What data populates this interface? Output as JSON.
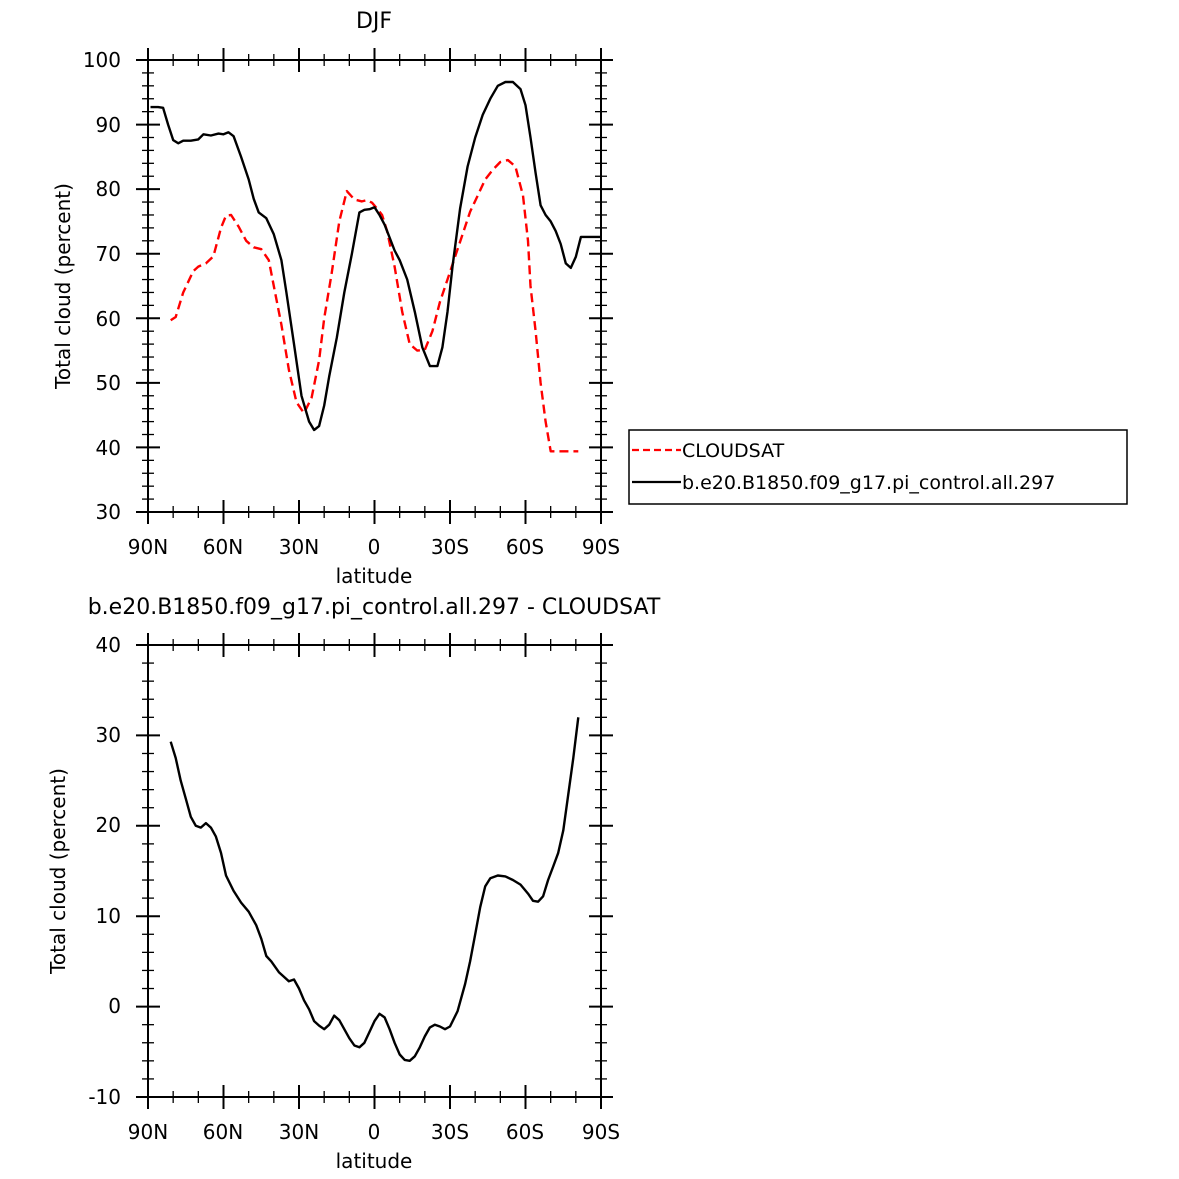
{
  "chart_data": [
    {
      "type": "line",
      "title": "DJF",
      "xlabel": "latitude",
      "ylabel": "Total cloud (percent)",
      "xlim": [
        90,
        -90
      ],
      "ylim": [
        30,
        100
      ],
      "yticks": [
        "30",
        "40",
        "50",
        "60",
        "70",
        "80",
        "90",
        "100"
      ],
      "xtick_values": [
        90,
        60,
        30,
        0,
        -30,
        -60,
        -90
      ],
      "xticks": [
        "90N",
        "60N",
        "30N",
        "0",
        "30S",
        "60S",
        "90S"
      ],
      "legend": "right",
      "series": [
        {
          "name": "CLOUDSAT",
          "color": "#ff0000",
          "dash": "dashed",
          "x": [
            81,
            79,
            76,
            72,
            70,
            67,
            64,
            61,
            59,
            57,
            54,
            51,
            48,
            45,
            42,
            40,
            37,
            34,
            31,
            28,
            25,
            22,
            20,
            17,
            14,
            11,
            8,
            5,
            3,
            1,
            -1,
            -3,
            -5,
            -8,
            -11,
            -14,
            -17,
            -20,
            -23,
            -26,
            -29,
            -32,
            -35,
            -38,
            -41,
            -44,
            -47,
            -50,
            -53,
            -56,
            -59,
            -61,
            -62,
            -64,
            -66,
            -68,
            -70,
            -72,
            -74,
            -76,
            -78,
            -80,
            -81
          ],
          "y": [
            59.7,
            60.2,
            64,
            67.3,
            68,
            68.5,
            69.6,
            74,
            75.9,
            76,
            74.2,
            72,
            71,
            70.7,
            69,
            65,
            59,
            52,
            47,
            45.3,
            47.7,
            53.5,
            60,
            67,
            75,
            79.7,
            78.4,
            78.1,
            78.3,
            77.9,
            77,
            76,
            73.5,
            68,
            61,
            56,
            55,
            55.1,
            58,
            62.5,
            66,
            69.5,
            73,
            76.5,
            79,
            81.5,
            83,
            84.2,
            84.5,
            83.5,
            79,
            72,
            65,
            58,
            50,
            44,
            39.4,
            39.4,
            39.4,
            39.4,
            39.4,
            39.4,
            39.4
          ]
        },
        {
          "name": "b.e20.B1850.f09_g17.pi_control.all.297",
          "color": "#000000",
          "dash": "solid",
          "x": [
            89,
            86,
            84,
            82,
            80,
            78,
            76,
            73,
            70,
            68,
            65,
            62,
            60,
            58,
            56,
            53,
            50,
            48,
            46,
            43,
            40,
            37,
            35,
            32,
            29,
            26,
            24,
            22,
            20,
            18,
            15,
            12,
            9,
            6,
            4,
            2,
            0,
            -2,
            -4,
            -6,
            -8,
            -10,
            -13,
            -16,
            -19,
            -22,
            -25,
            -27,
            -29,
            -31,
            -34,
            -37,
            -40,
            -43,
            -46,
            -49,
            -52,
            -55,
            -58,
            -60,
            -62,
            -64,
            -66,
            -68,
            -70,
            -72,
            -74,
            -76,
            -78,
            -80,
            -82,
            -84,
            -86,
            -88,
            -90
          ],
          "y": [
            92.7,
            92.7,
            92.6,
            90,
            87.6,
            87.1,
            87.5,
            87.5,
            87.7,
            88.5,
            88.3,
            88.6,
            88.5,
            88.8,
            88.2,
            85,
            81.5,
            78.5,
            76.4,
            75.5,
            73,
            69,
            64,
            56,
            48,
            44,
            42.7,
            43.3,
            46.5,
            51,
            57,
            64,
            70,
            76.4,
            76.8,
            76.9,
            77.2,
            76,
            74.5,
            72.5,
            70.5,
            69,
            66,
            61,
            55.5,
            52.6,
            52.6,
            55.5,
            61,
            68,
            77,
            83.5,
            88,
            91.5,
            94,
            96,
            96.6,
            96.6,
            95.5,
            93,
            88,
            82.5,
            77.5,
            76,
            75,
            73.5,
            71.5,
            68.5,
            67.8,
            69.5,
            72.6,
            72.6,
            72.6,
            72.6,
            72.6
          ]
        }
      ]
    },
    {
      "type": "line",
      "title": "b.e20.B1850.f09_g17.pi_control.all.297 - CLOUDSAT",
      "xlabel": "latitude",
      "ylabel": "Total cloud (percent)",
      "xlim": [
        90,
        -90
      ],
      "ylim": [
        -10,
        40
      ],
      "yticks": [
        "-10",
        "0",
        "10",
        "20",
        "30",
        "40"
      ],
      "xtick_values": [
        90,
        60,
        30,
        0,
        -30,
        -60,
        -90
      ],
      "xticks": [
        "90N",
        "60N",
        "30N",
        "0",
        "30S",
        "60S",
        "90S"
      ],
      "series": [
        {
          "name": "",
          "color": "#000000",
          "dash": "solid",
          "x": [
            81,
            79,
            77,
            75,
            73,
            71,
            69,
            67,
            65,
            63,
            61,
            59,
            56,
            53,
            50,
            47,
            45,
            43,
            41,
            38,
            36,
            34,
            32,
            30,
            28,
            26,
            24,
            22,
            20,
            18,
            16,
            14,
            12,
            10,
            8,
            6,
            4,
            2,
            0,
            -2,
            -4,
            -6,
            -8,
            -10,
            -12,
            -14,
            -16,
            -18,
            -20,
            -22,
            -24,
            -26,
            -28,
            -30,
            -33,
            -36,
            -38,
            -40,
            -42,
            -44,
            -46,
            -49,
            -52,
            -55,
            -58,
            -61,
            -63,
            -65,
            -67,
            -69,
            -71,
            -73,
            -75,
            -77,
            -79,
            -81
          ],
          "y": [
            29.3,
            27.5,
            25,
            23,
            21,
            20,
            19.8,
            20.3,
            19.8,
            18.8,
            17,
            14.5,
            12.8,
            11.5,
            10.5,
            9,
            7.5,
            5.6,
            5,
            3.8,
            3.3,
            2.8,
            3,
            2,
            0.7,
            -0.3,
            -1.6,
            -2.1,
            -2.5,
            -2,
            -1,
            -1.5,
            -2.5,
            -3.5,
            -4.3,
            -4.5,
            -4,
            -2.8,
            -1.6,
            -0.8,
            -1.2,
            -2.5,
            -4,
            -5.3,
            -5.9,
            -6,
            -5.5,
            -4.5,
            -3.3,
            -2.3,
            -2,
            -2.2,
            -2.5,
            -2.2,
            -0.5,
            2.5,
            5,
            8,
            11,
            13.3,
            14.2,
            14.5,
            14.4,
            14,
            13.5,
            12.5,
            11.7,
            11.6,
            12.2,
            14,
            15.5,
            17,
            19.5,
            23.5,
            27.5,
            32
          ]
        }
      ]
    }
  ]
}
